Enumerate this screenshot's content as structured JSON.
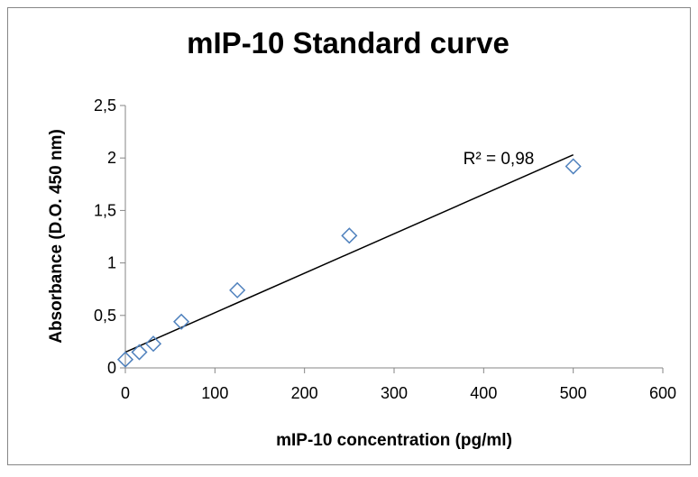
{
  "chart_data": {
    "type": "scatter",
    "title": "mIP-10 Standard curve",
    "xlabel": "mIP-10 concentration (pg/ml)",
    "ylabel": "Absorbance (D.O. 450 nm)",
    "xlim": [
      0,
      600
    ],
    "ylim": [
      0,
      2.5
    ],
    "x_ticks": [
      0,
      100,
      200,
      300,
      400,
      500,
      600
    ],
    "x_tick_labels": [
      "0",
      "100",
      "200",
      "300",
      "400",
      "500",
      "600"
    ],
    "y_ticks": [
      0,
      0.5,
      1,
      1.5,
      2,
      2.5
    ],
    "y_tick_labels": [
      "0",
      "0,5",
      "1",
      "1,5",
      "2",
      "2,5"
    ],
    "grid": false,
    "legend": "none",
    "series": [
      {
        "marker": "diamond",
        "color": "#4F81BD",
        "x": [
          0,
          15.6,
          31.25,
          62.5,
          125,
          250,
          500
        ],
        "y": [
          0.08,
          0.15,
          0.23,
          0.44,
          0.74,
          1.26,
          1.92
        ]
      }
    ],
    "trendline": {
      "type": "linear",
      "color": "#000000",
      "x": [
        0,
        500
      ],
      "y": [
        0.15,
        2.03
      ],
      "annotation": "R² = 0,98"
    }
  }
}
